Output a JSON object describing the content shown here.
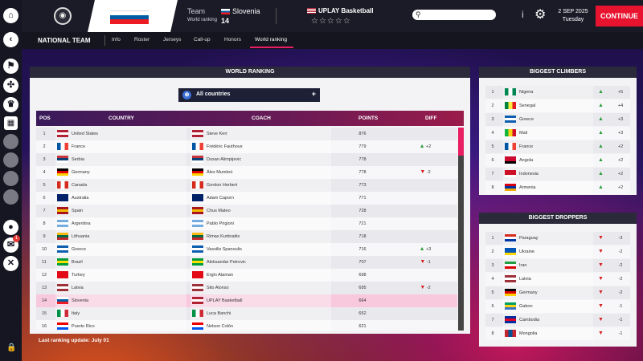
{
  "topbar": {
    "team_label": "Team",
    "team_value": "Slovenia",
    "world_ranking_label": "World ranking",
    "world_ranking_value": "14",
    "club_name": "UPLAY Basketball",
    "stars": "☆☆☆☆☆",
    "search_placeholder": "",
    "date_line1": "2 SEP 2025",
    "date_line2": "Tuesday",
    "continue_label": "CONTINUE"
  },
  "sidebar": {
    "badge_count": "1"
  },
  "nav": {
    "title": "NATIONAL TEAM",
    "tabs": [
      {
        "label": "Info"
      },
      {
        "label": "Roster"
      },
      {
        "label": "Jerseys"
      },
      {
        "label": "Call-up"
      },
      {
        "label": "Honors"
      },
      {
        "label": "World ranking"
      }
    ]
  },
  "ranking": {
    "title": "WORLD RANKING",
    "filter": "All countries",
    "headers": {
      "pos": "POS",
      "country": "COUNTRY",
      "coach": "COACH",
      "points": "POINTS",
      "diff": "DIFF"
    },
    "last_update": "Last ranking update: July 01",
    "rows": [
      {
        "pos": "1",
        "country": "United States",
        "coach": "Steve Kerr",
        "points": "876",
        "diff": "",
        "dir": ""
      },
      {
        "pos": "2",
        "country": "France",
        "coach": "Frédéric Fauthoux",
        "points": "779",
        "diff": "+2",
        "dir": "up"
      },
      {
        "pos": "3",
        "country": "Serbia",
        "coach": "Dusan Alimpijevic",
        "points": "778",
        "diff": "",
        "dir": ""
      },
      {
        "pos": "4",
        "country": "Germany",
        "coach": "Álex Mumbrú",
        "points": "778",
        "diff": "-2",
        "dir": "down"
      },
      {
        "pos": "5",
        "country": "Canada",
        "coach": "Gordon Herbert",
        "points": "773",
        "diff": "",
        "dir": ""
      },
      {
        "pos": "6",
        "country": "Australia",
        "coach": "Adam Caporn",
        "points": "771",
        "diff": "",
        "dir": ""
      },
      {
        "pos": "7",
        "country": "Spain",
        "coach": "Chus Mateo",
        "points": "728",
        "diff": "",
        "dir": ""
      },
      {
        "pos": "8",
        "country": "Argentina",
        "coach": "Pablo Prigioni",
        "points": "721",
        "diff": "",
        "dir": ""
      },
      {
        "pos": "9",
        "country": "Lithuania",
        "coach": "Rimas Kurtinaitis",
        "points": "718",
        "diff": "",
        "dir": ""
      },
      {
        "pos": "10",
        "country": "Greece",
        "coach": "Vassilis Spanoulis",
        "points": "716",
        "diff": "+3",
        "dir": "up"
      },
      {
        "pos": "11",
        "country": "Brazil",
        "coach": "Aleksandar Petrovic",
        "points": "707",
        "diff": "-1",
        "dir": "down"
      },
      {
        "pos": "12",
        "country": "Turkey",
        "coach": "Ergin Ataman",
        "points": "698",
        "diff": "",
        "dir": ""
      },
      {
        "pos": "13",
        "country": "Latvia",
        "coach": "Sito Alonso",
        "points": "695",
        "diff": "-2",
        "dir": "down"
      },
      {
        "pos": "14",
        "country": "Slovenia",
        "coach": "UPLAY Basketball",
        "points": "664",
        "diff": "",
        "dir": ""
      },
      {
        "pos": "15",
        "country": "Italy",
        "coach": "Luca Banchi",
        "points": "652",
        "diff": "",
        "dir": ""
      },
      {
        "pos": "16",
        "country": "Puerto Rico",
        "coach": "Nelson Colón",
        "points": "621",
        "diff": "",
        "dir": ""
      }
    ]
  },
  "climbers": {
    "title": "BIGGEST CLIMBERS",
    "rows": [
      {
        "pos": "1",
        "country": "Nigeria",
        "diff": "+5"
      },
      {
        "pos": "2",
        "country": "Senegal",
        "diff": "+4"
      },
      {
        "pos": "3",
        "country": "Greece",
        "diff": "+3"
      },
      {
        "pos": "4",
        "country": "Mali",
        "diff": "+3"
      },
      {
        "pos": "5",
        "country": "France",
        "diff": "+2"
      },
      {
        "pos": "6",
        "country": "Angola",
        "diff": "+2"
      },
      {
        "pos": "7",
        "country": "Indonesia",
        "diff": "+2"
      },
      {
        "pos": "8",
        "country": "Armenia",
        "diff": "+2"
      }
    ]
  },
  "droppers": {
    "title": "BIGGEST DROPPERS",
    "rows": [
      {
        "pos": "1",
        "country": "Paraguay",
        "diff": "-3"
      },
      {
        "pos": "2",
        "country": "Ukraine",
        "diff": "-2"
      },
      {
        "pos": "3",
        "country": "Iran",
        "diff": "-2"
      },
      {
        "pos": "4",
        "country": "Latvia",
        "diff": "-2"
      },
      {
        "pos": "5",
        "country": "Germany",
        "diff": "-2"
      },
      {
        "pos": "6",
        "country": "Gabon",
        "diff": "-1"
      },
      {
        "pos": "7",
        "country": "Cambodia",
        "diff": "-1"
      },
      {
        "pos": "8",
        "country": "Mongolia",
        "diff": "-1"
      }
    ]
  },
  "flag_colors": {
    "United States": [
      "#b22234",
      "#ffffff",
      "#b22234"
    ],
    "France": [
      "#0055a4",
      "#ffffff",
      "#ef4135",
      "v"
    ],
    "Serbia": [
      "#c6363c",
      "#0c4076",
      "#ffffff"
    ],
    "Germany": [
      "#000000",
      "#dd0000",
      "#ffce00"
    ],
    "Canada": [
      "#d52b1e",
      "#ffffff",
      "#d52b1e",
      "v"
    ],
    "Australia": [
      "#012169",
      "#012169",
      "#012169"
    ],
    "Spain": [
      "#aa151b",
      "#f1bf00",
      "#aa151b"
    ],
    "Argentina": [
      "#74acdf",
      "#ffffff",
      "#74acdf"
    ],
    "Lithuania": [
      "#fdb913",
      "#006a44",
      "#c1272d"
    ],
    "Greece": [
      "#0d5eaf",
      "#ffffff",
      "#0d5eaf"
    ],
    "Brazil": [
      "#009c3b",
      "#ffdf00",
      "#009c3b"
    ],
    "Turkey": [
      "#e30a17",
      "#e30a17",
      "#e30a17"
    ],
    "Latvia": [
      "#9e3039",
      "#ffffff",
      "#9e3039"
    ],
    "Slovenia": [
      "#ffffff",
      "#005da4",
      "#ed1c24"
    ],
    "Italy": [
      "#009246",
      "#ffffff",
      "#ce2b37",
      "v"
    ],
    "Puerto Rico": [
      "#ed0000",
      "#ffffff",
      "#0050f0"
    ],
    "Nigeria": [
      "#008751",
      "#ffffff",
      "#008751",
      "v"
    ],
    "Senegal": [
      "#00853f",
      "#fdef42",
      "#e31b23",
      "v"
    ],
    "Mali": [
      "#14b53a",
      "#fcd116",
      "#ce1126",
      "v"
    ],
    "Angola": [
      "#cc092f",
      "#cc092f",
      "#000000"
    ],
    "Indonesia": [
      "#ce1126",
      "#ce1126",
      "#ffffff"
    ],
    "Armenia": [
      "#d90012",
      "#0033a0",
      "#f2a800"
    ],
    "Paraguay": [
      "#d52b1e",
      "#ffffff",
      "#0038a8"
    ],
    "Ukraine": [
      "#0057b7",
      "#0057b7",
      "#ffd700"
    ],
    "Iran": [
      "#239f40",
      "#ffffff",
      "#da0000"
    ],
    "Gabon": [
      "#009e60",
      "#fcd116",
      "#3a75c4"
    ],
    "Cambodia": [
      "#032ea1",
      "#e00025",
      "#032ea1"
    ],
    "Mongolia": [
      "#c4272f",
      "#015197",
      "#c4272f",
      "v"
    ]
  }
}
